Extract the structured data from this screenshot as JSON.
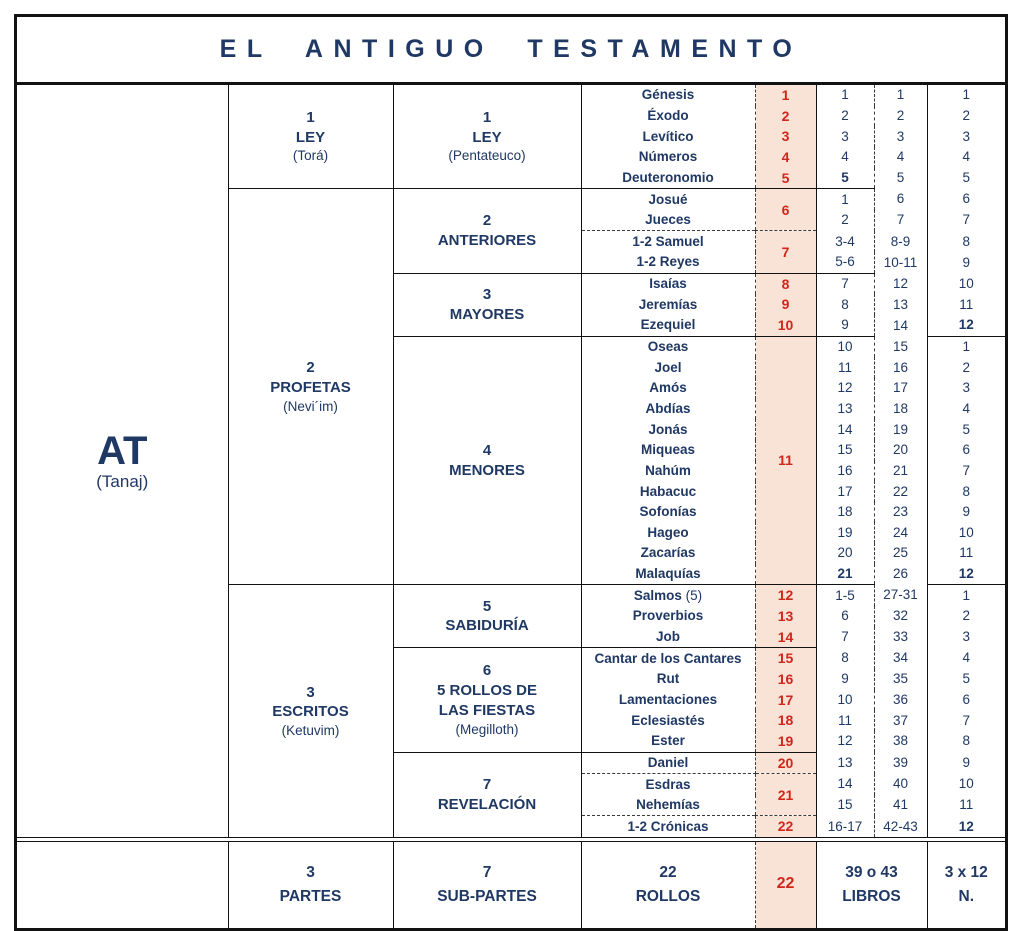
{
  "title": "EL ANTIGUO TESTAMENTO",
  "colors": {
    "text_navy": "#1f3864",
    "scroll_red": "#d2261c",
    "scroll_bg_pink": "#f9e2d6",
    "border_black": "#121212"
  },
  "left": {
    "abbr": "AT",
    "paren": "(Tanaj)"
  },
  "table": {
    "parts": [
      {
        "num": "1",
        "name": "LEY",
        "paren": "(Torá)",
        "start": 0,
        "span": 5
      },
      {
        "num": "2",
        "name": "PROFETAS",
        "paren": "(Nevi´im)",
        "start": 5,
        "span": 19
      },
      {
        "num": "3",
        "name": "ESCRITOS",
        "paren": "(Ketuvim)",
        "start": 24,
        "span": 12
      }
    ],
    "subparts": [
      {
        "num": "1",
        "lines": [
          "LEY"
        ],
        "paren": "(Pentateuco)",
        "start": 0,
        "span": 5
      },
      {
        "num": "2",
        "lines": [
          "ANTERIORES"
        ],
        "start": 5,
        "span": 4
      },
      {
        "num": "3",
        "lines": [
          "MAYORES"
        ],
        "start": 9,
        "span": 3
      },
      {
        "num": "4",
        "lines": [
          "MENORES"
        ],
        "start": 12,
        "span": 12
      },
      {
        "num": "5",
        "lines": [
          "SABIDURÍA"
        ],
        "start": 24,
        "span": 3
      },
      {
        "num": "6",
        "lines": [
          "5 ROLLOS DE",
          "LAS FIESTAS"
        ],
        "paren": "(Megilloth)",
        "start": 27,
        "span": 5
      },
      {
        "num": "7",
        "lines": [
          "REVELACIÓN"
        ],
        "start": 32,
        "span": 4
      }
    ],
    "rows": [
      {
        "book": "Génesis",
        "red": {
          "v": "1"
        },
        "a": "1",
        "b": "1",
        "c": "1"
      },
      {
        "book": "Éxodo",
        "red": {
          "v": "2"
        },
        "a": "2",
        "b": "2",
        "c": "2"
      },
      {
        "book": "Levítico",
        "red": {
          "v": "3"
        },
        "a": "3",
        "b": "3",
        "c": "3"
      },
      {
        "book": "Números",
        "red": {
          "v": "4"
        },
        "a": "4",
        "b": "4",
        "c": "4"
      },
      {
        "book": "Deuteronomio",
        "bsep": "s",
        "red": {
          "v": "5",
          "sep": "s"
        },
        "a": "5",
        "ab": true,
        "asep": true,
        "b": "5",
        "c": "5"
      },
      {
        "book": "Josué",
        "red": {
          "v": "6",
          "span": 2,
          "sep": "d"
        },
        "a": "1",
        "b": "6",
        "c": "6"
      },
      {
        "book": "Jueces",
        "bsep": "d",
        "a": "2",
        "b": "7",
        "c": "7"
      },
      {
        "book": "1-2 Samuel",
        "red": {
          "v": "7",
          "span": 2,
          "sep": "s"
        },
        "a": "3-4",
        "b": "8-9",
        "c": "8"
      },
      {
        "book": "1-2 Reyes",
        "bsep": "s",
        "a": "5-6",
        "asep": true,
        "b": "10-11",
        "c": "9"
      },
      {
        "book": "Isaías",
        "red": {
          "v": "8"
        },
        "a": "7",
        "b": "12",
        "c": "10"
      },
      {
        "book": "Jeremías",
        "red": {
          "v": "9"
        },
        "a": "8",
        "b": "13",
        "c": "11"
      },
      {
        "book": "Ezequiel",
        "bsep": "s",
        "red": {
          "v": "10",
          "sep": "s"
        },
        "a": "9",
        "asep": true,
        "b": "14",
        "c": "12",
        "cb": true,
        "csep": true
      },
      {
        "book": "Oseas",
        "red": {
          "v": "11",
          "span": 12,
          "sep": "s"
        },
        "a": "10",
        "b": "15",
        "c": "1"
      },
      {
        "book": "Joel",
        "a": "11",
        "b": "16",
        "c": "2"
      },
      {
        "book": "Amós",
        "a": "12",
        "b": "17",
        "c": "3"
      },
      {
        "book": "Abdías",
        "a": "13",
        "b": "18",
        "c": "4"
      },
      {
        "book": "Jonás",
        "a": "14",
        "b": "19",
        "c": "5"
      },
      {
        "book": "Miqueas",
        "a": "15",
        "b": "20",
        "c": "6"
      },
      {
        "book": "Nahúm",
        "a": "16",
        "b": "21",
        "c": "7"
      },
      {
        "book": "Habacuc",
        "a": "17",
        "b": "22",
        "c": "8"
      },
      {
        "book": "Sofonías",
        "a": "18",
        "b": "23",
        "c": "9"
      },
      {
        "book": "Hageo",
        "a": "19",
        "b": "24",
        "c": "10"
      },
      {
        "book": "Zacarías",
        "a": "20",
        "b": "25",
        "c": "11"
      },
      {
        "book": "Malaquías",
        "bsep": "s",
        "a": "21",
        "ab": true,
        "asep": true,
        "b": "26",
        "c": "12",
        "cb": true,
        "csep": true
      },
      {
        "book": "Salmos",
        "note": "(5)",
        "red": {
          "v": "12"
        },
        "a": "1-5",
        "b": "27-31",
        "c": "1"
      },
      {
        "book": "Proverbios",
        "red": {
          "v": "13"
        },
        "a": "6",
        "b": "32",
        "c": "2"
      },
      {
        "book": "Job",
        "bsep": "s",
        "red": {
          "v": "14",
          "sep": "s"
        },
        "a": "7",
        "b": "33",
        "c": "3"
      },
      {
        "book": "Cantar de los Cantares",
        "red": {
          "v": "15"
        },
        "a": "8",
        "b": "34",
        "c": "4"
      },
      {
        "book": "Rut",
        "red": {
          "v": "16"
        },
        "a": "9",
        "b": "35",
        "c": "5"
      },
      {
        "book": "Lamentaciones",
        "red": {
          "v": "17"
        },
        "a": "10",
        "b": "36",
        "c": "6"
      },
      {
        "book": "Eclesiastés",
        "red": {
          "v": "18"
        },
        "a": "11",
        "b": "37",
        "c": "7"
      },
      {
        "book": "Ester",
        "bsep": "s",
        "red": {
          "v": "19",
          "sep": "s"
        },
        "a": "12",
        "b": "38",
        "c": "8"
      },
      {
        "book": "Daniel",
        "bsep": "d",
        "red": {
          "v": "20",
          "sep": "d"
        },
        "a": "13",
        "b": "39",
        "c": "9"
      },
      {
        "book": "Esdras",
        "red": {
          "v": "21",
          "span": 2,
          "sep": "d"
        },
        "a": "14",
        "b": "40",
        "c": "10"
      },
      {
        "book": "Nehemías",
        "bsep": "d",
        "a": "15",
        "b": "41",
        "c": "11"
      },
      {
        "book": "1-2 Crónicas",
        "red": {
          "v": "22"
        },
        "a": "16-17",
        "b": "42-43",
        "c": "12",
        "cb": true
      }
    ]
  },
  "summary": {
    "part": [
      "3",
      "PARTES"
    ],
    "subpart": [
      "7",
      "SUB-PARTES"
    ],
    "rolls": [
      "22",
      "ROLLOS"
    ],
    "red": "22",
    "books": [
      "39 o 43",
      "LIBROS"
    ],
    "n": [
      "3 x 12",
      "N."
    ]
  }
}
